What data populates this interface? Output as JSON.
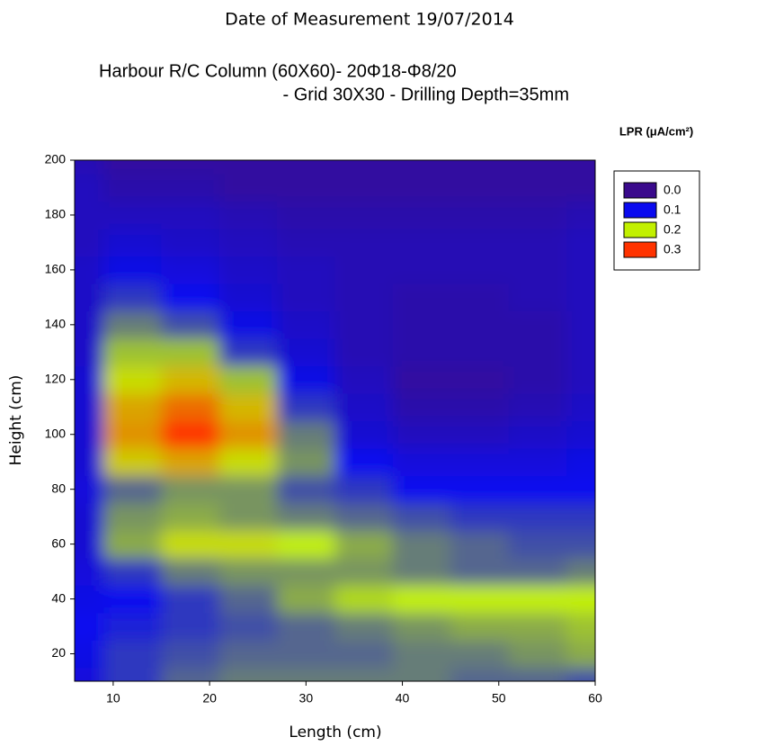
{
  "chart_data": {
    "type": "contour",
    "title": "Date of Measurement 19/07/2014",
    "subtitle": [
      "Harbour R/C Column (60X60)- 20Φ18-Φ8/20",
      "- Grid 30X30 - Drilling Depth=35mm"
    ],
    "x_label": "Length (cm)",
    "y_label": "Height (cm)",
    "legend_title": "LPR (μA/cm²)",
    "legend": [
      {
        "value": 0,
        "label": "0.0",
        "color": "#3a0a8c"
      },
      {
        "value": 0.1,
        "label": "0.1",
        "color": "#0a0aef"
      },
      {
        "value": 0.2,
        "label": "0.2",
        "color": "#c2f000"
      },
      {
        "value": 0.3,
        "label": "0.3",
        "color": "#ff3300"
      }
    ],
    "xlim": [
      6,
      60
    ],
    "ylim": [
      10,
      200
    ],
    "xticks": [
      10,
      20,
      30,
      40,
      50,
      60
    ],
    "yticks": [
      20,
      40,
      60,
      80,
      100,
      120,
      140,
      160,
      180,
      200
    ],
    "x": [
      6,
      12,
      18,
      24,
      30,
      36,
      42,
      48,
      54,
      60
    ],
    "y": [
      10,
      20,
      30,
      40,
      50,
      60,
      70,
      80,
      90,
      100,
      110,
      120,
      130,
      140,
      150,
      160,
      170,
      180,
      190,
      200
    ],
    "z": [
      [
        0.08,
        0.12,
        0.14,
        0.15,
        0.15,
        0.15,
        0.15,
        0.14,
        0.14,
        0.13
      ],
      [
        0.09,
        0.12,
        0.13,
        0.14,
        0.14,
        0.14,
        0.15,
        0.15,
        0.16,
        0.17
      ],
      [
        0.1,
        0.11,
        0.12,
        0.13,
        0.14,
        0.15,
        0.16,
        0.17,
        0.17,
        0.18
      ],
      [
        0.09,
        0.1,
        0.12,
        0.14,
        0.17,
        0.19,
        0.2,
        0.2,
        0.2,
        0.2
      ],
      [
        0.08,
        0.12,
        0.15,
        0.16,
        0.16,
        0.16,
        0.15,
        0.14,
        0.14,
        0.15
      ],
      [
        0.07,
        0.17,
        0.21,
        0.21,
        0.2,
        0.17,
        0.15,
        0.14,
        0.13,
        0.13
      ],
      [
        0.07,
        0.16,
        0.17,
        0.16,
        0.15,
        0.14,
        0.13,
        0.12,
        0.12,
        0.12
      ],
      [
        0.08,
        0.14,
        0.16,
        0.16,
        0.13,
        0.12,
        0.1,
        0.1,
        0.1,
        0.1
      ],
      [
        0.07,
        0.22,
        0.24,
        0.21,
        0.16,
        0.1,
        0.08,
        0.08,
        0.08,
        0.09
      ],
      [
        0.07,
        0.25,
        0.3,
        0.25,
        0.15,
        0.07,
        0.05,
        0.05,
        0.06,
        0.07
      ],
      [
        0.07,
        0.24,
        0.27,
        0.23,
        0.12,
        0.06,
        0.03,
        0.03,
        0.04,
        0.06
      ],
      [
        0.07,
        0.21,
        0.23,
        0.18,
        0.09,
        0.05,
        0.02,
        0.02,
        0.03,
        0.05
      ],
      [
        0.06,
        0.18,
        0.18,
        0.12,
        0.07,
        0.04,
        0.03,
        0.03,
        0.03,
        0.05
      ],
      [
        0.06,
        0.15,
        0.13,
        0.09,
        0.06,
        0.04,
        0.03,
        0.03,
        0.03,
        0.05
      ],
      [
        0.06,
        0.12,
        0.1,
        0.07,
        0.05,
        0.04,
        0.03,
        0.03,
        0.04,
        0.05
      ],
      [
        0.06,
        0.09,
        0.08,
        0.06,
        0.05,
        0.04,
        0.04,
        0.04,
        0.04,
        0.05
      ],
      [
        0.05,
        0.07,
        0.06,
        0.05,
        0.04,
        0.04,
        0.04,
        0.04,
        0.04,
        0.05
      ],
      [
        0.05,
        0.05,
        0.05,
        0.04,
        0.03,
        0.03,
        0.03,
        0.03,
        0.03,
        0.04
      ],
      [
        0.05,
        0.03,
        0.03,
        0.02,
        0.02,
        0.02,
        0.02,
        0.02,
        0.02,
        0.02
      ],
      [
        0.04,
        0.02,
        0.02,
        0.02,
        0.02,
        0.02,
        0.02,
        0.02,
        0.02,
        0.02
      ]
    ]
  }
}
